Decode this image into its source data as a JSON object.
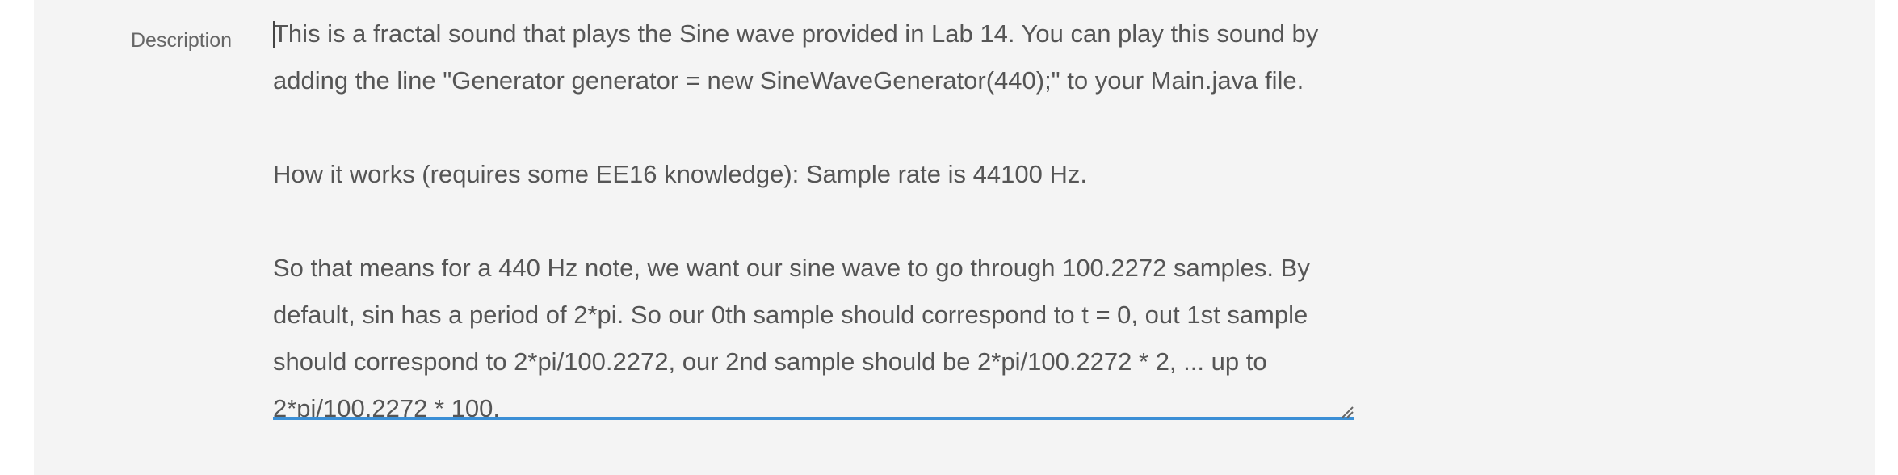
{
  "field": {
    "label": "Description",
    "paragraphs": [
      "This is a fractal sound that plays the Sine wave provided in Lab 14. You can play this sound by adding the line \"Generator generator = new SineWaveGenerator(440);\" to your Main.java file.",
      "How it works (requires some EE16 knowledge): Sample rate is 44100 Hz.",
      "So that means for a 440 Hz note, we want our sine wave to go through 100.2272 samples. By default, sin has a period of 2*pi. So our 0th sample should correspond to t = 0, out 1st sample should correspond to 2*pi/100.2272, our 2nd sample should be 2*pi/100.2272 * 2, ... up to 2*pi/100.2272 * 100."
    ]
  }
}
